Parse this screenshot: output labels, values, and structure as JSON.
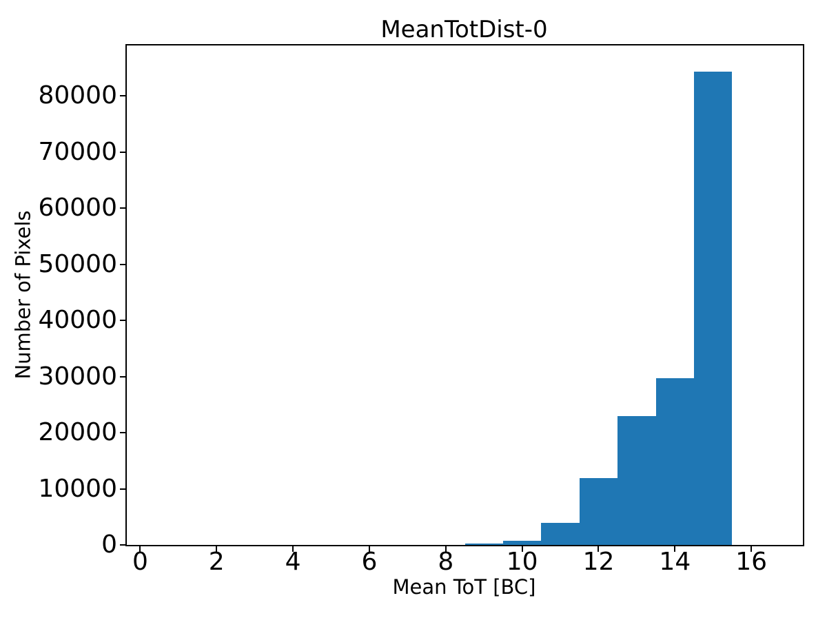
{
  "chart_data": {
    "type": "bar",
    "subtype": "histogram",
    "title": "MeanTotDist-0",
    "xlabel": "Mean ToT [BC]",
    "ylabel": "Number of Pixels",
    "bar_color": "#1f77b4",
    "axis_color": "#000000",
    "background_color": "#ffffff",
    "grid": false,
    "legend": false,
    "bin_edges": [
      0.5,
      1.5,
      2.5,
      3.5,
      4.5,
      5.5,
      6.5,
      7.5,
      8.5,
      9.5,
      10.5,
      11.5,
      12.5,
      13.5,
      14.5,
      15.5,
      16.5
    ],
    "counts": [
      0,
      0,
      0,
      0,
      0,
      0,
      0,
      0,
      250,
      750,
      3900,
      11900,
      23000,
      29650,
      84300,
      0
    ],
    "xlim": [
      -0.35,
      17.35
    ],
    "ylim": [
      0,
      89000
    ],
    "xticks": [
      0,
      2,
      4,
      6,
      8,
      10,
      12,
      14,
      16
    ],
    "yticks": [
      0,
      10000,
      20000,
      30000,
      40000,
      50000,
      60000,
      70000,
      80000
    ]
  }
}
